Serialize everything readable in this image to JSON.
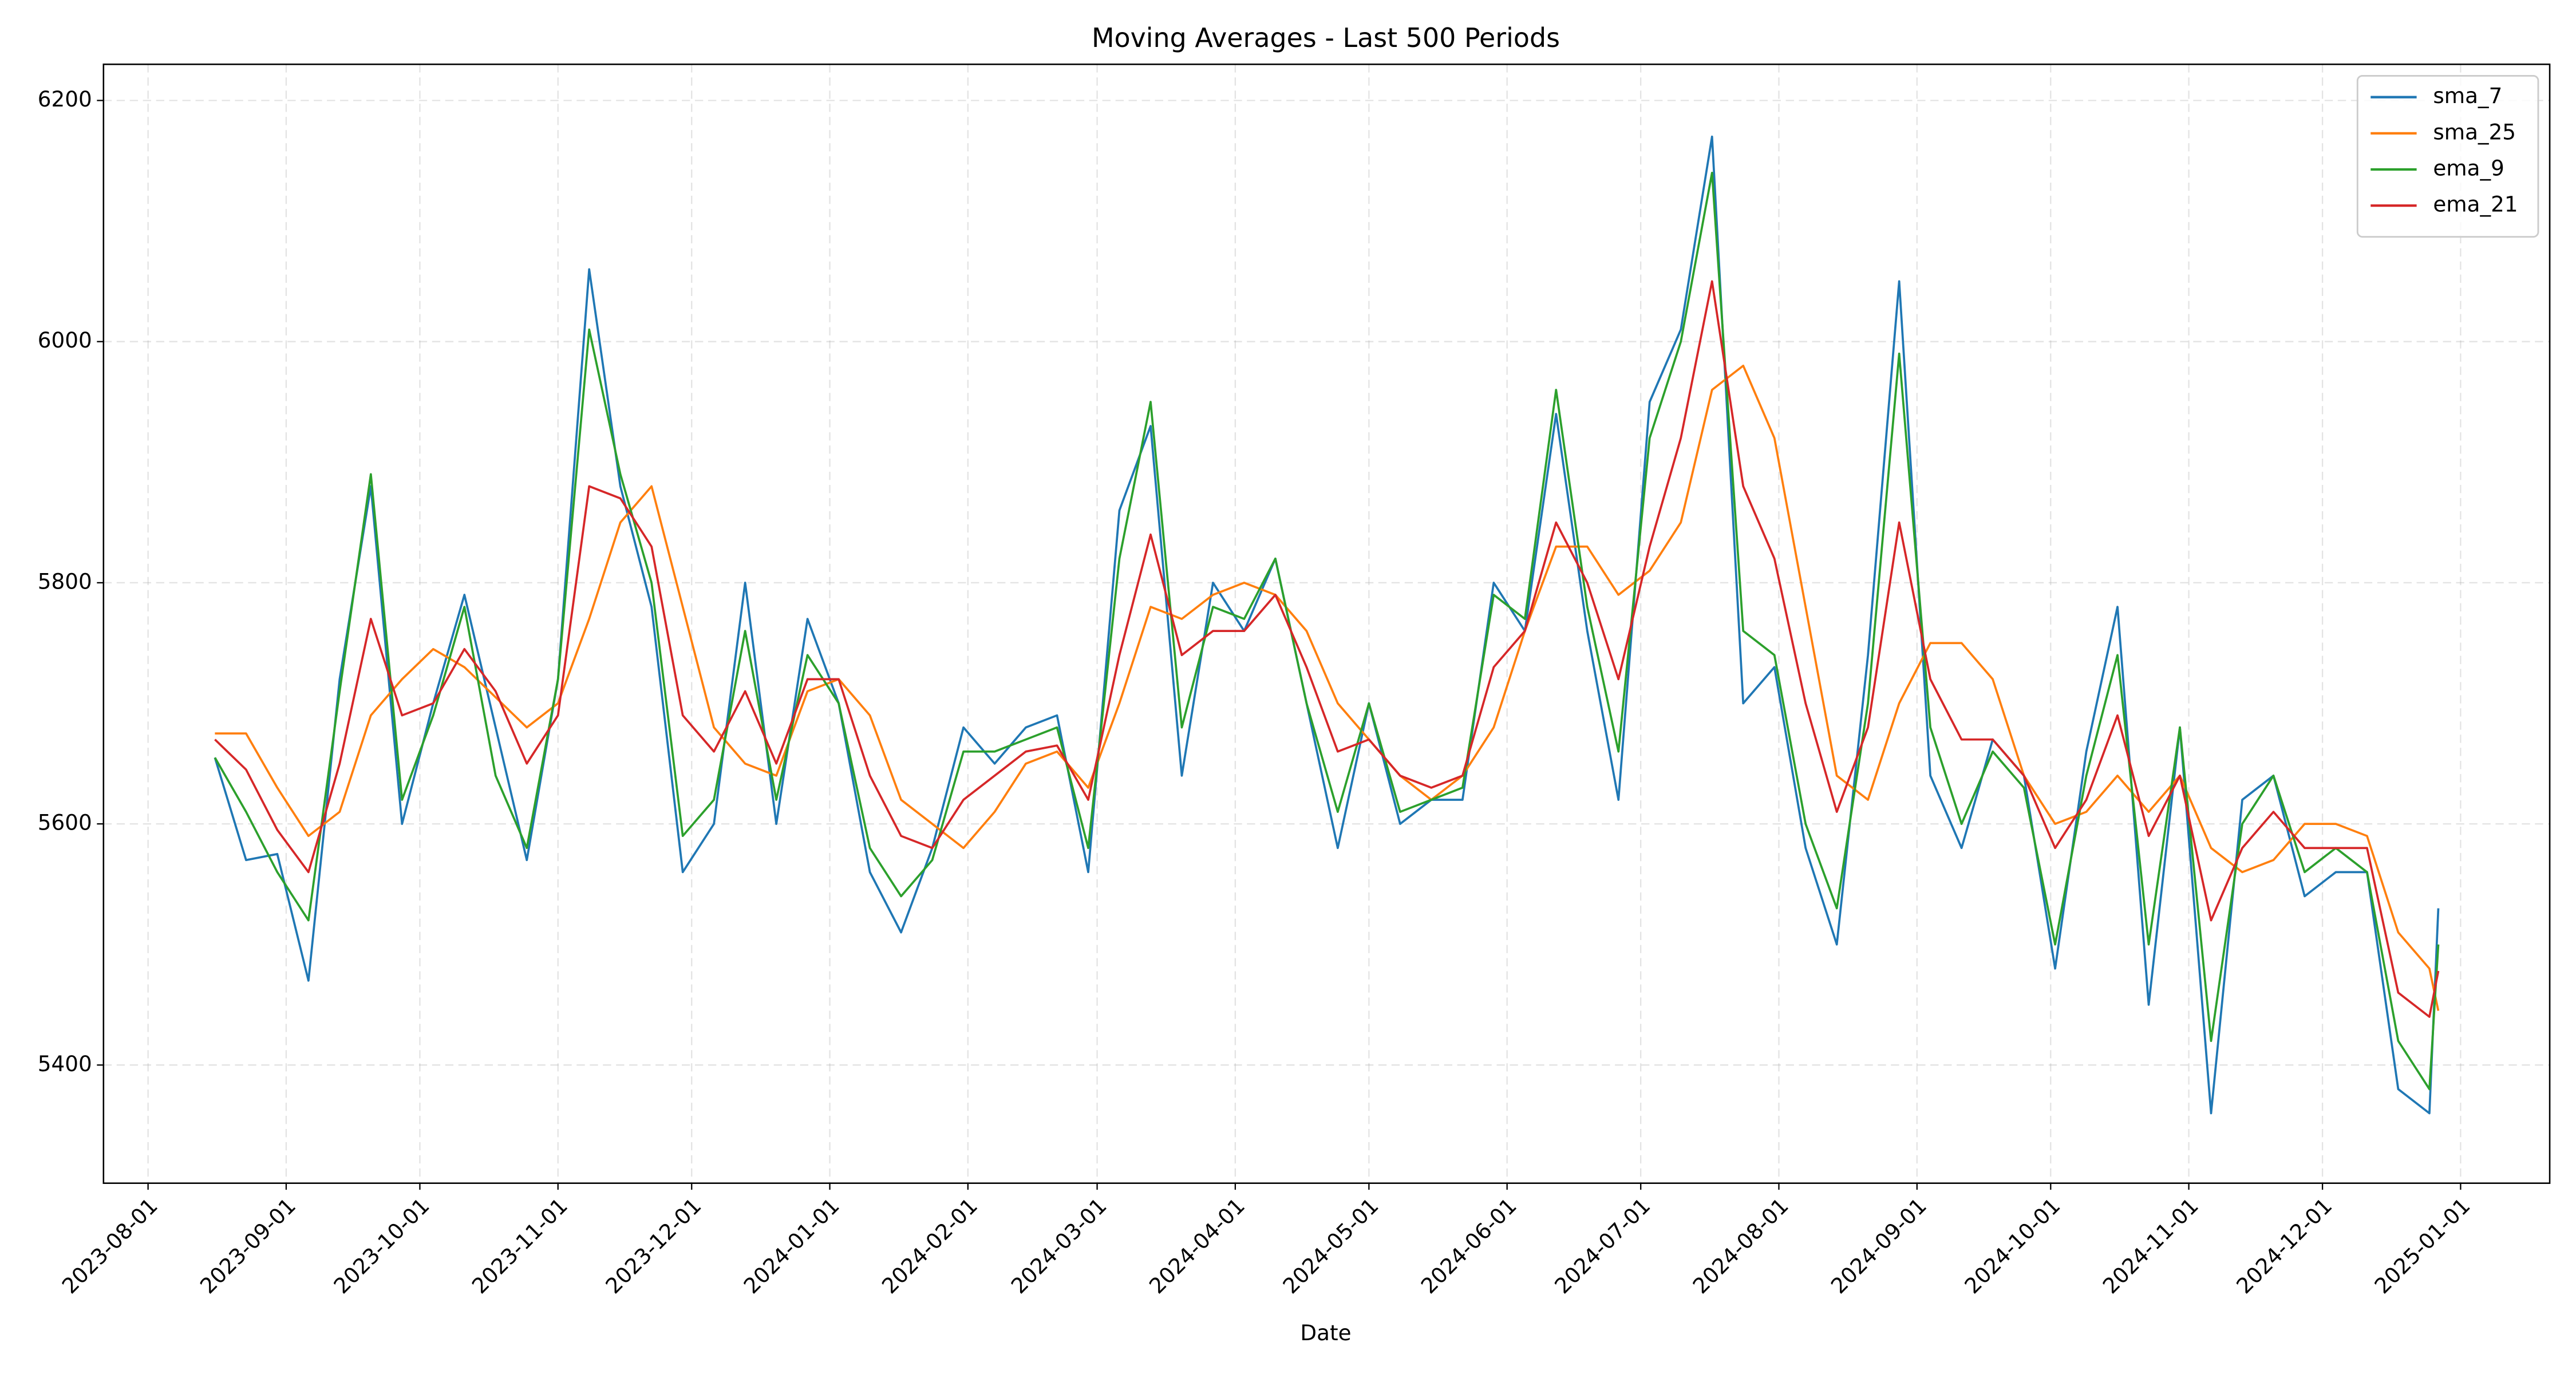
{
  "chart_data": {
    "type": "line",
    "title": "Moving Averages - Last 500 Periods",
    "x_label": "Date",
    "x": [
      "2023-08-16",
      "2023-08-23",
      "2023-08-30",
      "2023-09-06",
      "2023-09-13",
      "2023-09-20",
      "2023-09-27",
      "2023-10-04",
      "2023-10-11",
      "2023-10-18",
      "2023-10-25",
      "2023-11-01",
      "2023-11-08",
      "2023-11-15",
      "2023-11-22",
      "2023-11-29",
      "2023-12-06",
      "2023-12-13",
      "2023-12-20",
      "2023-12-27",
      "2024-01-03",
      "2024-01-10",
      "2024-01-17",
      "2024-01-24",
      "2024-01-31",
      "2024-02-07",
      "2024-02-14",
      "2024-02-21",
      "2024-02-28",
      "2024-03-06",
      "2024-03-13",
      "2024-03-20",
      "2024-03-27",
      "2024-04-03",
      "2024-04-10",
      "2024-04-17",
      "2024-04-24",
      "2024-05-01",
      "2024-05-08",
      "2024-05-15",
      "2024-05-22",
      "2024-05-29",
      "2024-06-05",
      "2024-06-12",
      "2024-06-19",
      "2024-06-26",
      "2024-07-03",
      "2024-07-10",
      "2024-07-17",
      "2024-07-24",
      "2024-07-31",
      "2024-08-07",
      "2024-08-14",
      "2024-08-21",
      "2024-08-28",
      "2024-09-04",
      "2024-09-11",
      "2024-09-18",
      "2024-09-25",
      "2024-10-02",
      "2024-10-09",
      "2024-10-16",
      "2024-10-23",
      "2024-10-30",
      "2024-11-06",
      "2024-11-13",
      "2024-11-20",
      "2024-11-27",
      "2024-12-04",
      "2024-12-11",
      "2024-12-18",
      "2024-12-25",
      "2024-12-27"
    ],
    "series": [
      {
        "name": "sma_7",
        "color": "#1f77b4",
        "values": [
          5655,
          5570,
          5575,
          5470,
          5720,
          5880,
          5600,
          5700,
          5790,
          5680,
          5570,
          5720,
          6060,
          5880,
          5780,
          5560,
          5600,
          5800,
          5600,
          5770,
          5700,
          5560,
          5510,
          5580,
          5680,
          5650,
          5680,
          5690,
          5560,
          5860,
          5930,
          5640,
          5800,
          5760,
          5820,
          5700,
          5580,
          5700,
          5600,
          5620,
          5620,
          5800,
          5760,
          5940,
          5760,
          5620,
          5950,
          6010,
          6170,
          5700,
          5730,
          5580,
          5500,
          5740,
          6050,
          5640,
          5580,
          5670,
          5640,
          5480,
          5660,
          5780,
          5450,
          5680,
          5360,
          5620,
          5640,
          5540,
          5560,
          5560,
          5380,
          5360,
          5530
        ]
      },
      {
        "name": "sma_25",
        "color": "#ff7f0e",
        "values": [
          5675,
          5675,
          5630,
          5590,
          5610,
          5690,
          5720,
          5745,
          5730,
          5705,
          5680,
          5700,
          5770,
          5850,
          5880,
          5780,
          5680,
          5650,
          5640,
          5710,
          5720,
          5690,
          5620,
          5600,
          5580,
          5610,
          5650,
          5660,
          5630,
          5700,
          5780,
          5770,
          5790,
          5800,
          5790,
          5760,
          5700,
          5670,
          5640,
          5620,
          5640,
          5680,
          5760,
          5830,
          5830,
          5790,
          5810,
          5850,
          5960,
          5980,
          5920,
          5780,
          5640,
          5620,
          5700,
          5750,
          5750,
          5720,
          5640,
          5600,
          5610,
          5640,
          5610,
          5640,
          5580,
          5560,
          5570,
          5600,
          5600,
          5590,
          5510,
          5480,
          5445
        ]
      },
      {
        "name": "ema_9",
        "color": "#2ca02c",
        "values": [
          5655,
          5610,
          5560,
          5520,
          5710,
          5890,
          5620,
          5690,
          5780,
          5640,
          5580,
          5720,
          6010,
          5890,
          5800,
          5590,
          5620,
          5760,
          5620,
          5740,
          5700,
          5580,
          5540,
          5570,
          5660,
          5660,
          5670,
          5680,
          5580,
          5820,
          5950,
          5680,
          5780,
          5770,
          5820,
          5700,
          5610,
          5700,
          5610,
          5620,
          5630,
          5790,
          5770,
          5960,
          5780,
          5660,
          5920,
          6000,
          6140,
          5760,
          5740,
          5600,
          5530,
          5700,
          5990,
          5680,
          5600,
          5660,
          5630,
          5500,
          5640,
          5740,
          5500,
          5680,
          5420,
          5600,
          5640,
          5560,
          5580,
          5560,
          5420,
          5380,
          5500
        ]
      },
      {
        "name": "ema_21",
        "color": "#d62728",
        "values": [
          5670,
          5645,
          5595,
          5560,
          5650,
          5770,
          5690,
          5700,
          5745,
          5710,
          5650,
          5690,
          5880,
          5870,
          5830,
          5690,
          5660,
          5710,
          5650,
          5720,
          5720,
          5640,
          5590,
          5580,
          5620,
          5640,
          5660,
          5665,
          5620,
          5740,
          5840,
          5740,
          5760,
          5760,
          5790,
          5730,
          5660,
          5670,
          5640,
          5630,
          5640,
          5730,
          5760,
          5850,
          5800,
          5720,
          5830,
          5920,
          6050,
          5880,
          5820,
          5700,
          5610,
          5680,
          5850,
          5720,
          5670,
          5670,
          5640,
          5580,
          5620,
          5690,
          5590,
          5640,
          5520,
          5580,
          5610,
          5580,
          5580,
          5580,
          5460,
          5440,
          5478
        ]
      }
    ],
    "xlim": [
      "2023-07-22",
      "2025-01-21"
    ],
    "xticks": [
      "2023-08-01",
      "2023-09-01",
      "2023-10-01",
      "2023-11-01",
      "2023-12-01",
      "2024-01-01",
      "2024-02-01",
      "2024-03-01",
      "2024-04-01",
      "2024-05-01",
      "2024-06-01",
      "2024-07-01",
      "2024-08-01",
      "2024-09-01",
      "2024-10-01",
      "2024-11-01",
      "2024-12-01",
      "2025-01-01"
    ],
    "ylim": [
      5302,
      6230
    ],
    "yticks": [
      5400,
      5600,
      5800,
      6000,
      6200
    ],
    "grid": true,
    "legend": "upper right"
  }
}
